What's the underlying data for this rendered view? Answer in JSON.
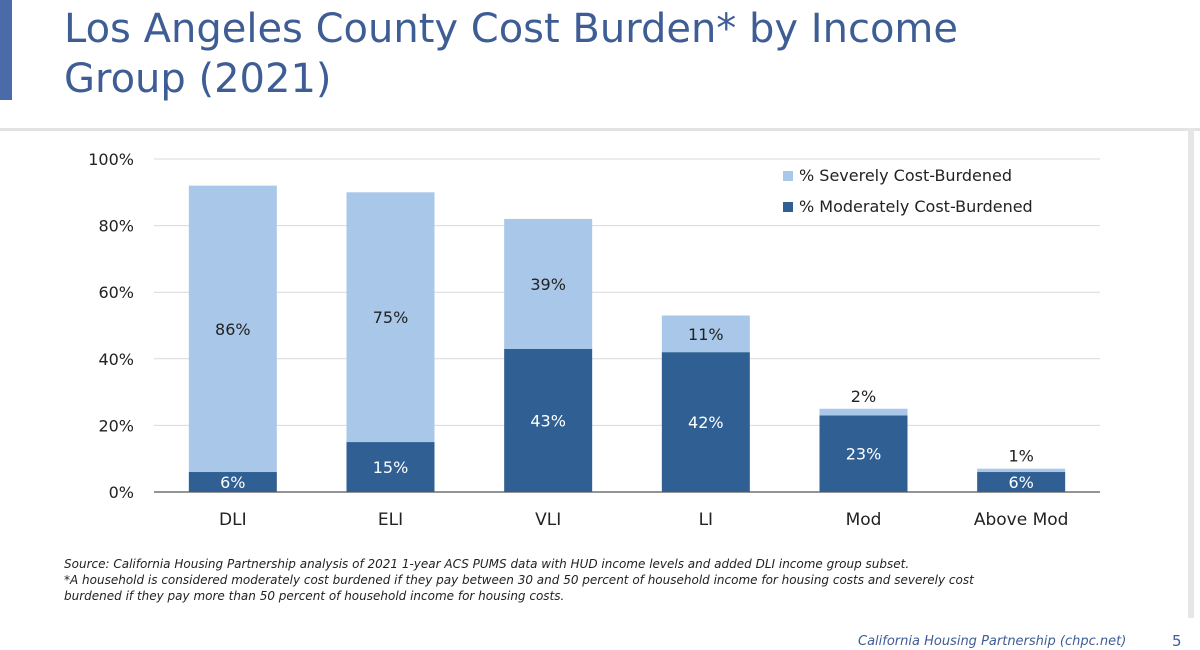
{
  "slide": {
    "title_line1": "Los Angeles County Cost Burden* by Income",
    "title_line2": "Group (2021)",
    "source_note": "Source: California Housing Partnership analysis of 2021 1-year ACS PUMS data with HUD income levels and added DLI income group subset.",
    "definition_note_line1": "*A household is considered moderately cost burdened if they pay between 30 and 50 percent of household income for housing costs and severely cost",
    "definition_note_line2": "burdened if they pay more than 50 percent of household income for housing costs.",
    "footer_brand": "California Housing Partnership (chpc.net)",
    "page_number": "5",
    "accent_color": "#4a6aa8",
    "title_color": "#3e5d95"
  },
  "chart_data": {
    "type": "bar",
    "stacked": true,
    "title": "",
    "xlabel": "",
    "ylabel": "",
    "categories": [
      "DLI",
      "ELI",
      "VLI",
      "LI",
      "Mod",
      "Above Mod"
    ],
    "series": [
      {
        "name": "% Moderately Cost-Burdened",
        "values": [
          6,
          15,
          43,
          42,
          23,
          6
        ],
        "labels": [
          "6%",
          "15%",
          "43%",
          "42%",
          "23%",
          "6%"
        ],
        "color": "#2f5f93"
      },
      {
        "name": "% Severely Cost-Burdened",
        "values": [
          86,
          75,
          39,
          11,
          2,
          1
        ],
        "labels": [
          "86%",
          "75%",
          "39%",
          "11%",
          "2%",
          "1%"
        ],
        "color": "#a9c8e9"
      }
    ],
    "ylim": [
      0,
      100
    ],
    "yticks": [
      0,
      20,
      40,
      60,
      80,
      100
    ],
    "ytick_labels": [
      "0%",
      "20%",
      "40%",
      "60%",
      "80%",
      "100%"
    ],
    "legend": [
      "% Severely Cost-Burdened",
      "% Moderately Cost-Burdened"
    ],
    "legend_position": "top-right",
    "grid": true
  }
}
